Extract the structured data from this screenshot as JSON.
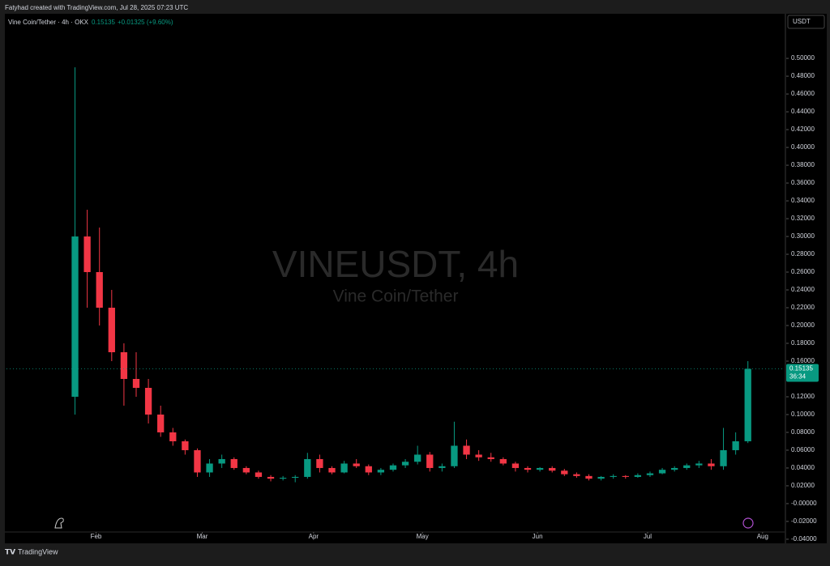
{
  "header": {
    "credit": "Fatyhad created with TradingView.com, Jul 28, 2025 07:23 UTC"
  },
  "legend": {
    "symbol": "Vine Coin/Tether · 4h · OKX",
    "price": "0.15135",
    "change": "+0.01325 (+9.60%)"
  },
  "watermark": {
    "title": "VINEUSDT, 4h",
    "subtitle": "Vine Coin/Tether"
  },
  "currency": "USDT",
  "footer": "TradingView",
  "chart_data": {
    "type": "candlestick",
    "up_color": "#089981",
    "down_color": "#f23645",
    "open": [
      0.12,
      0.3,
      0.26,
      0.22,
      0.17,
      0.14,
      0.13,
      0.1,
      0.08,
      0.07,
      0.06,
      0.035,
      0.045,
      0.05,
      0.04,
      0.035,
      0.03,
      0.028,
      0.029,
      0.03,
      0.05,
      0.04,
      0.035,
      0.045,
      0.042,
      0.035,
      0.038,
      0.043,
      0.047,
      0.055,
      0.04,
      0.042,
      0.065,
      0.055,
      0.052,
      0.05,
      0.045,
      0.04,
      0.038,
      0.04,
      0.037,
      0.033,
      0.031,
      0.028,
      0.03,
      0.031,
      0.03,
      0.032,
      0.034,
      0.038,
      0.04,
      0.043,
      0.045,
      0.042,
      0.06,
      0.07
    ],
    "high": [
      0.49,
      0.33,
      0.31,
      0.24,
      0.18,
      0.17,
      0.14,
      0.11,
      0.085,
      0.072,
      0.062,
      0.05,
      0.055,
      0.052,
      0.042,
      0.037,
      0.032,
      0.031,
      0.032,
      0.057,
      0.055,
      0.042,
      0.048,
      0.05,
      0.044,
      0.04,
      0.045,
      0.05,
      0.065,
      0.058,
      0.045,
      0.092,
      0.072,
      0.06,
      0.057,
      0.052,
      0.047,
      0.042,
      0.041,
      0.042,
      0.039,
      0.035,
      0.033,
      0.031,
      0.033,
      0.032,
      0.034,
      0.036,
      0.04,
      0.042,
      0.045,
      0.048,
      0.05,
      0.085,
      0.08,
      0.16
    ],
    "low": [
      0.1,
      0.22,
      0.2,
      0.16,
      0.11,
      0.12,
      0.09,
      0.075,
      0.065,
      0.055,
      0.03,
      0.03,
      0.04,
      0.038,
      0.033,
      0.028,
      0.025,
      0.026,
      0.024,
      0.028,
      0.035,
      0.033,
      0.034,
      0.04,
      0.032,
      0.032,
      0.036,
      0.04,
      0.044,
      0.036,
      0.036,
      0.04,
      0.05,
      0.048,
      0.047,
      0.043,
      0.036,
      0.035,
      0.036,
      0.035,
      0.031,
      0.029,
      0.026,
      0.026,
      0.028,
      0.028,
      0.029,
      0.03,
      0.033,
      0.036,
      0.038,
      0.04,
      0.038,
      0.038,
      0.055,
      0.068
    ],
    "close": [
      0.3,
      0.26,
      0.22,
      0.17,
      0.14,
      0.13,
      0.1,
      0.08,
      0.07,
      0.06,
      0.035,
      0.045,
      0.05,
      0.04,
      0.035,
      0.03,
      0.028,
      0.029,
      0.03,
      0.05,
      0.04,
      0.035,
      0.045,
      0.042,
      0.035,
      0.038,
      0.043,
      0.047,
      0.055,
      0.04,
      0.042,
      0.065,
      0.055,
      0.052,
      0.05,
      0.045,
      0.04,
      0.038,
      0.04,
      0.037,
      0.033,
      0.031,
      0.028,
      0.03,
      0.031,
      0.03,
      0.032,
      0.034,
      0.038,
      0.04,
      0.043,
      0.045,
      0.042,
      0.06,
      0.07,
      0.15135
    ],
    "xlim": [
      -5.6,
      58
    ],
    "xticks": [
      {
        "value": 1.72,
        "label": "Feb"
      },
      {
        "value": 10.4,
        "label": "Mar"
      },
      {
        "value": 19.5,
        "label": "Apr"
      },
      {
        "value": 28.4,
        "label": "May"
      },
      {
        "value": 37.8,
        "label": "Jun"
      },
      {
        "value": 46.8,
        "label": "Jul"
      },
      {
        "value": 56.2,
        "label": "Aug"
      }
    ],
    "ylim": [
      -0.0446,
      0.5501
    ],
    "yticks": [
      {
        "value": 0.5,
        "label": "0.50000"
      },
      {
        "value": 0.48,
        "label": "0.48000"
      },
      {
        "value": 0.46,
        "label": "0.46000"
      },
      {
        "value": 0.44,
        "label": "0.44000"
      },
      {
        "value": 0.42,
        "label": "0.42000"
      },
      {
        "value": 0.4,
        "label": "0.40000"
      },
      {
        "value": 0.38,
        "label": "0.38000"
      },
      {
        "value": 0.36,
        "label": "0.36000"
      },
      {
        "value": 0.34,
        "label": "0.34000"
      },
      {
        "value": 0.32,
        "label": "0.32000"
      },
      {
        "value": 0.3,
        "label": "0.30000"
      },
      {
        "value": 0.28,
        "label": "0.28000"
      },
      {
        "value": 0.26,
        "label": "0.26000"
      },
      {
        "value": 0.24,
        "label": "0.24000"
      },
      {
        "value": 0.22,
        "label": "0.22000"
      },
      {
        "value": 0.2,
        "label": "0.20000"
      },
      {
        "value": 0.18,
        "label": "0.18000"
      },
      {
        "value": 0.16,
        "label": "0.16000"
      },
      {
        "value": 0.14,
        "label": "0.14000"
      },
      {
        "value": 0.12,
        "label": "0.12000"
      },
      {
        "value": 0.1,
        "label": "0.10000"
      },
      {
        "value": 0.08,
        "label": "0.08000"
      },
      {
        "value": 0.06,
        "label": "0.06000"
      },
      {
        "value": 0.04,
        "label": "0.04000"
      },
      {
        "value": 0.02,
        "label": "0.02000"
      },
      {
        "value": 0,
        "label": "-0.00000"
      },
      {
        "value": -0.02,
        "label": "-0.02000"
      },
      {
        "value": -0.04,
        "label": "-0.04000"
      }
    ],
    "last_price": 0.15135,
    "countdown": "36:34"
  }
}
